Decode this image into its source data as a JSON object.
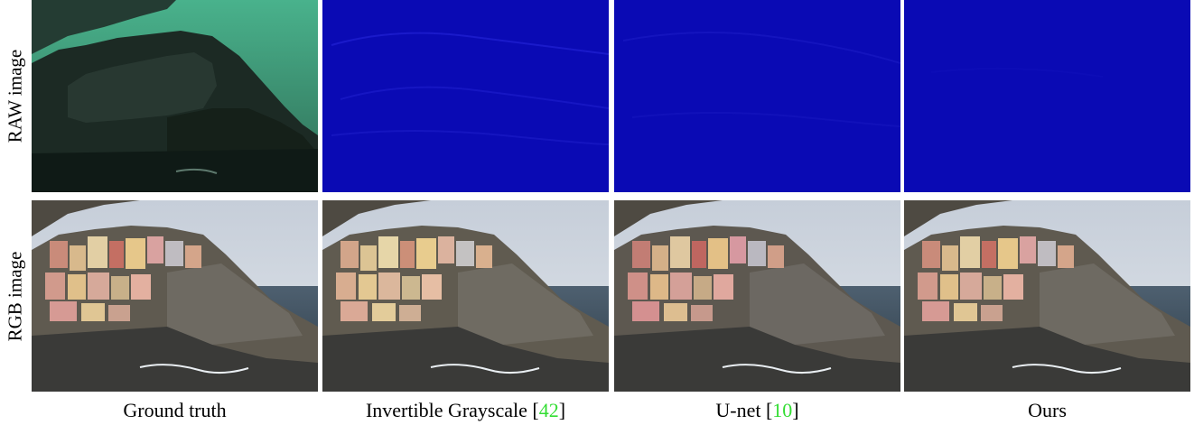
{
  "row_labels": [
    "RAW image",
    "RGB image"
  ],
  "columns": [
    {
      "label": "Ground truth",
      "citation": ""
    },
    {
      "label": "Invertible Grayscale",
      "citation": "42"
    },
    {
      "label": "U-net",
      "citation": "10"
    },
    {
      "label": "Ours",
      "citation": ""
    }
  ],
  "colors": {
    "raw_tint": "#3fa37f",
    "error_map_blue": "#0a0ab4",
    "citation": "#33dd33"
  }
}
